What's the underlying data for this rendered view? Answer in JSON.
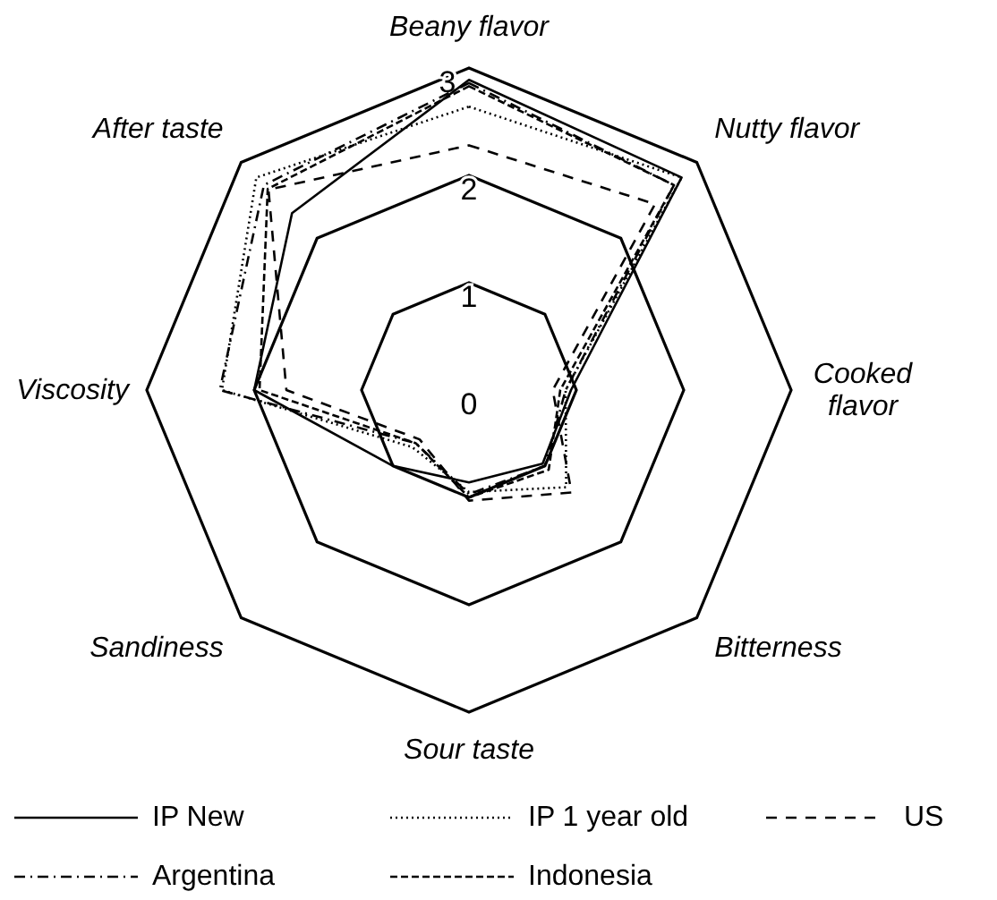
{
  "chart_data": {
    "type": "radar",
    "categories": [
      "Beany flavor",
      "Nutty flavor",
      "Cooked flavor",
      "Bitterness",
      "Sour taste",
      "Sandiness",
      "Viscosity",
      "After taste"
    ],
    "ylim": [
      0,
      3
    ],
    "yticks": [
      0,
      1,
      2,
      3
    ],
    "grid": true,
    "legend": "bottom",
    "series": [
      {
        "name": "IP New",
        "color": "#000000",
        "line_style": "solid",
        "values": [
          2.89,
          2.8,
          0.95,
          0.97,
          0.86,
          1.0,
          2.0,
          2.33
        ]
      },
      {
        "name": "IP 1 year old",
        "color": "#000000",
        "line_style": "dotted",
        "values": [
          2.64,
          2.8,
          0.9,
          1.28,
          0.95,
          0.75,
          2.3,
          2.8
        ]
      },
      {
        "name": "US",
        "color": "#000000",
        "line_style": "dashed",
        "values": [
          2.28,
          2.45,
          0.78,
          1.35,
          1.03,
          0.65,
          1.7,
          2.64
        ]
      },
      {
        "name": "Argentina",
        "color": "#000000",
        "line_style": "dashdot",
        "values": [
          2.86,
          2.7,
          0.9,
          1.0,
          0.97,
          0.7,
          2.32,
          2.7
        ]
      },
      {
        "name": "Indonesia",
        "color": "#000000",
        "line_style": "densely dashed",
        "values": [
          2.83,
          2.7,
          0.85,
          1.05,
          1.0,
          0.7,
          1.95,
          2.65
        ]
      }
    ]
  }
}
